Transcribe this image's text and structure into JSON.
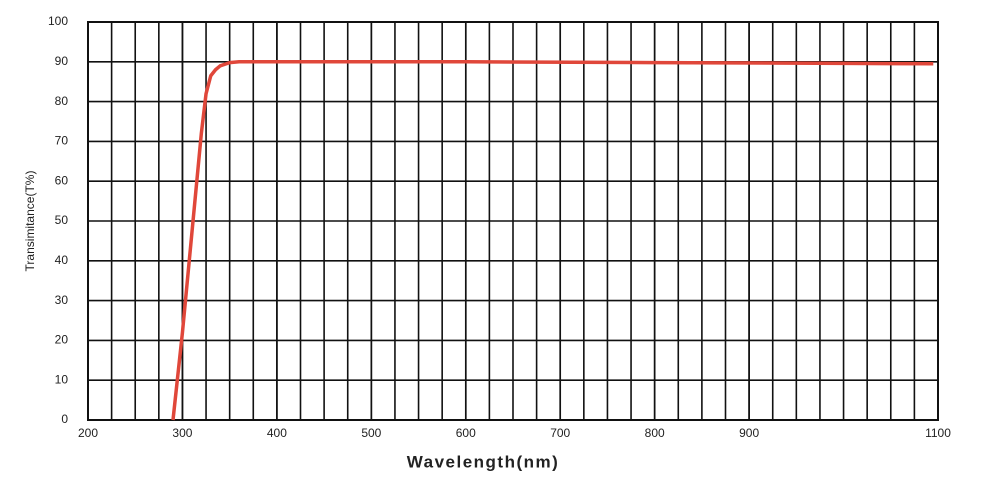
{
  "chart_data": {
    "type": "line",
    "x_label": "Wavelength(nm)",
    "y_label": "Transimitance(T%)",
    "x": [
      290,
      300,
      310,
      320,
      325,
      330,
      335,
      340,
      350,
      360,
      400,
      600,
      800,
      1000,
      1095
    ],
    "series": [
      {
        "name": "Transmittance",
        "color": "#e0473a",
        "values": [
          0,
          22,
          47,
          72,
          82,
          86.5,
          88,
          89,
          89.8,
          90,
          90,
          90,
          89.8,
          89.6,
          89.5
        ]
      }
    ],
    "xlim": [
      200,
      1100
    ],
    "xticks": [
      200,
      300,
      400,
      500,
      600,
      700,
      800,
      900,
      1100
    ],
    "ylim": [
      0,
      100
    ],
    "yticks": [
      0,
      10,
      20,
      30,
      40,
      50,
      60,
      70,
      80,
      90,
      100
    ],
    "grid": true,
    "minor_x_grid_divisions": 4
  }
}
